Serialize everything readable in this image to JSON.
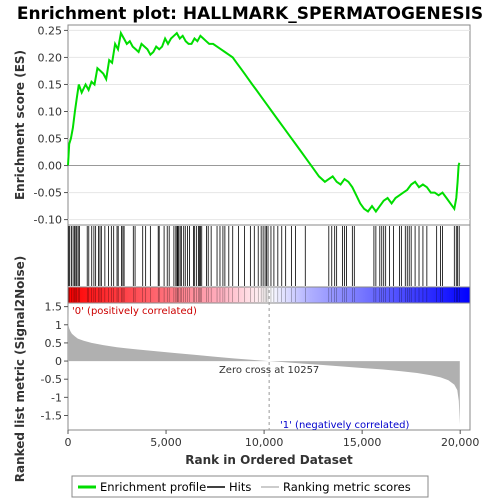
{
  "chart_data": {
    "type": "line",
    "title": "Enrichment plot: HALLMARK_SPERMATOGENESIS",
    "top_panel": {
      "ylabel": "Enrichment score (ES)",
      "ylim": [
        -0.11,
        0.26
      ],
      "yticks": [
        -0.1,
        -0.05,
        0.0,
        0.05,
        0.1,
        0.15,
        0.2,
        0.25
      ],
      "ytick_labels": [
        "-0.10",
        "-0.05",
        "0.00",
        "0.05",
        "0.10",
        "0.15",
        "0.20",
        "0.25"
      ],
      "series": [
        {
          "name": "Enrichment profile",
          "color": "#00dd00",
          "x": [
            0,
            60,
            150,
            250,
            350,
            450,
            550,
            700,
            900,
            1050,
            1200,
            1350,
            1500,
            1650,
            1800,
            1950,
            2100,
            2250,
            2400,
            2550,
            2700,
            2850,
            3000,
            3150,
            3300,
            3450,
            3600,
            3750,
            3900,
            4050,
            4200,
            4350,
            4500,
            4650,
            4800,
            4950,
            5100,
            5250,
            5400,
            5550,
            5700,
            5850,
            6000,
            6150,
            6300,
            6450,
            6600,
            6750,
            6900,
            7050,
            7200,
            7400,
            7600,
            7800,
            8000,
            8200,
            8400,
            8600,
            8800,
            9000,
            9200,
            9400,
            9600,
            9800,
            10000,
            10200,
            10400,
            10700,
            11000,
            11300,
            11600,
            11900,
            12200,
            12500,
            12800,
            13100,
            13300,
            13500,
            13700,
            13900,
            14100,
            14300,
            14500,
            14700,
            14900,
            15100,
            15300,
            15500,
            15700,
            15900,
            16100,
            16300,
            16500,
            16700,
            16900,
            17100,
            17300,
            17500,
            17700,
            17900,
            18100,
            18300,
            18500,
            18700,
            18900,
            19100,
            19300,
            19500,
            19700,
            19800,
            19870,
            19920,
            19960
          ],
          "y": [
            0.0,
            0.04,
            0.05,
            0.07,
            0.1,
            0.125,
            0.15,
            0.135,
            0.15,
            0.14,
            0.155,
            0.15,
            0.18,
            0.175,
            0.17,
            0.16,
            0.195,
            0.19,
            0.225,
            0.215,
            0.245,
            0.235,
            0.225,
            0.23,
            0.22,
            0.215,
            0.21,
            0.225,
            0.22,
            0.215,
            0.205,
            0.21,
            0.22,
            0.215,
            0.22,
            0.235,
            0.225,
            0.235,
            0.24,
            0.245,
            0.235,
            0.24,
            0.23,
            0.225,
            0.225,
            0.235,
            0.23,
            0.24,
            0.235,
            0.23,
            0.225,
            0.225,
            0.22,
            0.215,
            0.21,
            0.205,
            0.2,
            0.19,
            0.18,
            0.17,
            0.16,
            0.15,
            0.14,
            0.13,
            0.12,
            0.11,
            0.1,
            0.085,
            0.07,
            0.055,
            0.04,
            0.025,
            0.01,
            -0.005,
            -0.02,
            -0.03,
            -0.025,
            -0.02,
            -0.03,
            -0.035,
            -0.025,
            -0.03,
            -0.04,
            -0.055,
            -0.07,
            -0.08,
            -0.085,
            -0.075,
            -0.085,
            -0.075,
            -0.065,
            -0.06,
            -0.07,
            -0.06,
            -0.055,
            -0.05,
            -0.045,
            -0.035,
            -0.03,
            -0.04,
            -0.035,
            -0.04,
            -0.05,
            -0.05,
            -0.055,
            -0.05,
            -0.06,
            -0.07,
            -0.08,
            -0.06,
            -0.03,
            0.0,
            0.005
          ]
        }
      ]
    },
    "hits_panel": {
      "hit_ranks": [
        40,
        90,
        180,
        260,
        330,
        400,
        450,
        520,
        580,
        980,
        1060,
        1210,
        1320,
        1410,
        1560,
        1630,
        1700,
        1880,
        2060,
        2210,
        2330,
        2500,
        2560,
        2730,
        2800,
        2860,
        3330,
        3420,
        3810,
        3960,
        4200,
        4600,
        4650,
        4900,
        5060,
        5160,
        5400,
        5500,
        5560,
        5600,
        5650,
        5720,
        5780,
        5900,
        5980,
        6090,
        6200,
        6400,
        6460,
        6560,
        6650,
        6700,
        6760,
        6820,
        7060,
        7150,
        7300,
        7600,
        7750,
        7900,
        8000,
        8200,
        8400,
        8700,
        9000,
        9300,
        9500,
        9700,
        9850,
        9950,
        10050,
        10120,
        10200,
        10350,
        10500,
        10700,
        10900,
        11100,
        11400,
        11600,
        12100,
        13300,
        13450,
        13600,
        13700,
        14000,
        14100,
        14200,
        14500,
        14600,
        15600,
        15700,
        15900,
        16000,
        16100,
        16200,
        16400,
        16600,
        16900,
        17000,
        17200,
        17300,
        17400,
        17500,
        17700,
        17900,
        18100,
        18300,
        18800,
        19000,
        19100,
        19700,
        19800,
        19870,
        19950
      ]
    },
    "bottom_panel": {
      "ylabel": "Ranked list metric (Signal2Noise)",
      "xlabel": "Rank in Ordered Dataset",
      "ylim": [
        -1.9,
        1.6
      ],
      "yticks": [
        -1.5,
        -1.0,
        -0.5,
        0.0,
        0.5,
        1.0,
        1.5
      ],
      "ytick_labels": [
        "-1.5",
        "-1",
        "-0.5",
        "0",
        "0.5",
        "1",
        "1.5"
      ],
      "xlim": [
        0,
        20500
      ],
      "xticks": [
        0,
        5000,
        10000,
        15000,
        20000
      ],
      "xtick_labels": [
        "0",
        "5,000",
        "10,000",
        "15,000",
        "20,000"
      ],
      "metric_x": [
        0,
        20,
        60,
        120,
        200,
        350,
        500,
        800,
        1200,
        1800,
        2500,
        3500,
        4500,
        5500,
        6500,
        7500,
        8500,
        9500,
        10257,
        11000,
        12000,
        13000,
        14000,
        15000,
        16000,
        17000,
        17800,
        18500,
        19000,
        19400,
        19700,
        19850,
        19930,
        19980
      ],
      "metric_y": [
        1.55,
        1.0,
        0.9,
        0.82,
        0.75,
        0.68,
        0.62,
        0.56,
        0.5,
        0.44,
        0.38,
        0.32,
        0.27,
        0.22,
        0.17,
        0.12,
        0.07,
        0.03,
        0.0,
        -0.03,
        -0.07,
        -0.11,
        -0.15,
        -0.19,
        -0.23,
        -0.28,
        -0.33,
        -0.39,
        -0.45,
        -0.53,
        -0.65,
        -0.8,
        -1.1,
        -1.75
      ],
      "zero_cross_label": "Zero cross at 10257",
      "zero_cross_x": 10257,
      "pos_label": "'0' (positively correlated)",
      "neg_label": "'1' (negatively correlated)"
    },
    "legend": [
      {
        "label": "Enrichment profile",
        "color": "#00dd00"
      },
      {
        "label": "Hits",
        "color": "#000000"
      },
      {
        "label": "Ranking metric scores",
        "color": "#bbbbbb"
      }
    ],
    "colors": {
      "es_line": "#00dd00",
      "metric_fill": "#b0b0b0",
      "pos_label": "#cc0000",
      "neg_label": "#0000cc",
      "gradient_red": "#ff0000",
      "gradient_blue": "#0000ff"
    }
  }
}
